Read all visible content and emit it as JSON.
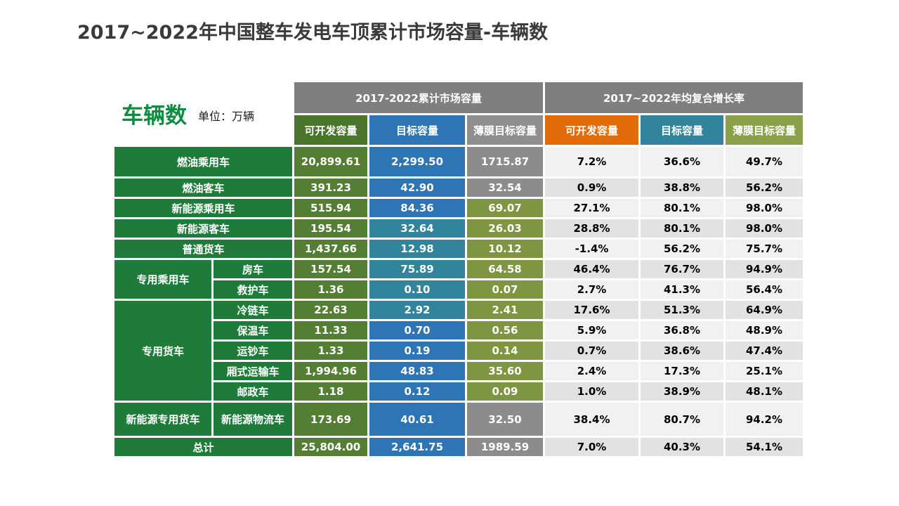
{
  "slide": {
    "title": "2017~2022年中国整车发电车顶累计市场容量-车辆数",
    "metric_label": "车辆数",
    "unit_label": "单位：万辆"
  },
  "colors": {
    "brand_green": "#0e8c40",
    "label_green": "#1e7b3a",
    "header_green": "#4a752c",
    "dev_green": "#537e34",
    "blue": "#2e75b6",
    "teal": "#31849b",
    "band_gray": "#7f7f7f",
    "sub_gray": "#8f8f8f",
    "cell_gray": "#8c8c8c",
    "orange": "#e36c0a",
    "olive_header": "#8ba04a",
    "olive": "#7e9542",
    "pct_light": "#f1f1f1",
    "pct_dark": "#e2e2e2"
  },
  "chart_data": {
    "type": "table",
    "title": "2017~2022年中国整车发电车顶累计市场容量-车辆数",
    "unit": "万辆",
    "col_groups": [
      "2017-2022累计市场容量",
      "2017~2022年均复合增长率"
    ],
    "columns": [
      "可开发容量",
      "目标容量",
      "薄膜目标容量",
      "可开发容量",
      "目标容量",
      "薄膜目标容量"
    ],
    "rows": [
      {
        "group": "",
        "label": "燃油乘用车",
        "cumulative": [
          "20,899.61",
          "2,299.50",
          "1715.87"
        ],
        "cagr": [
          "7.2%",
          "36.6%",
          "49.7%"
        ]
      },
      {
        "group": "",
        "label": "燃油客车",
        "cumulative": [
          "391.23",
          "42.90",
          "32.54"
        ],
        "cagr": [
          "0.9%",
          "38.8%",
          "56.2%"
        ]
      },
      {
        "group": "",
        "label": "新能源乘用车",
        "cumulative": [
          "515.94",
          "84.36",
          "69.07"
        ],
        "cagr": [
          "27.1%",
          "80.1%",
          "98.0%"
        ]
      },
      {
        "group": "",
        "label": "新能源客车",
        "cumulative": [
          "195.54",
          "32.64",
          "26.03"
        ],
        "cagr": [
          "28.8%",
          "80.1%",
          "98.0%"
        ]
      },
      {
        "group": "",
        "label": "普通货车",
        "cumulative": [
          "1,437.66",
          "12.98",
          "10.12"
        ],
        "cagr": [
          "-1.4%",
          "56.2%",
          "75.7%"
        ]
      },
      {
        "group": "专用乘用车",
        "label": "房车",
        "cumulative": [
          "157.54",
          "75.89",
          "64.58"
        ],
        "cagr": [
          "46.4%",
          "76.7%",
          "94.9%"
        ]
      },
      {
        "group": "",
        "label": "救护车",
        "cumulative": [
          "1.36",
          "0.10",
          "0.07"
        ],
        "cagr": [
          "2.7%",
          "41.3%",
          "56.4%"
        ]
      },
      {
        "group": "专用货车",
        "label": "冷链车",
        "cumulative": [
          "22.63",
          "2.92",
          "2.41"
        ],
        "cagr": [
          "17.6%",
          "51.3%",
          "64.9%"
        ]
      },
      {
        "group": "",
        "label": "保温车",
        "cumulative": [
          "11.33",
          "0.70",
          "0.56"
        ],
        "cagr": [
          "5.9%",
          "36.8%",
          "48.9%"
        ]
      },
      {
        "group": "",
        "label": "运钞车",
        "cumulative": [
          "1.33",
          "0.19",
          "0.14"
        ],
        "cagr": [
          "0.7%",
          "38.6%",
          "47.4%"
        ]
      },
      {
        "group": "",
        "label": "厢式运输车",
        "cumulative": [
          "1,994.96",
          "48.83",
          "35.60"
        ],
        "cagr": [
          "2.4%",
          "17.3%",
          "25.1%"
        ]
      },
      {
        "group": "",
        "label": "邮政车",
        "cumulative": [
          "1.18",
          "0.12",
          "0.09"
        ],
        "cagr": [
          "1.0%",
          "38.9%",
          "48.1%"
        ]
      },
      {
        "group": "新能源专用货车",
        "label": "新能源物流车",
        "cumulative": [
          "173.69",
          "40.61",
          "32.50"
        ],
        "cagr": [
          "38.4%",
          "80.7%",
          "94.2%"
        ]
      },
      {
        "group": "",
        "label": "总计",
        "cumulative": [
          "25,804.00",
          "2,641.75",
          "1989.59"
        ],
        "cagr": [
          "7.0%",
          "40.3%",
          "54.1%"
        ]
      }
    ]
  }
}
